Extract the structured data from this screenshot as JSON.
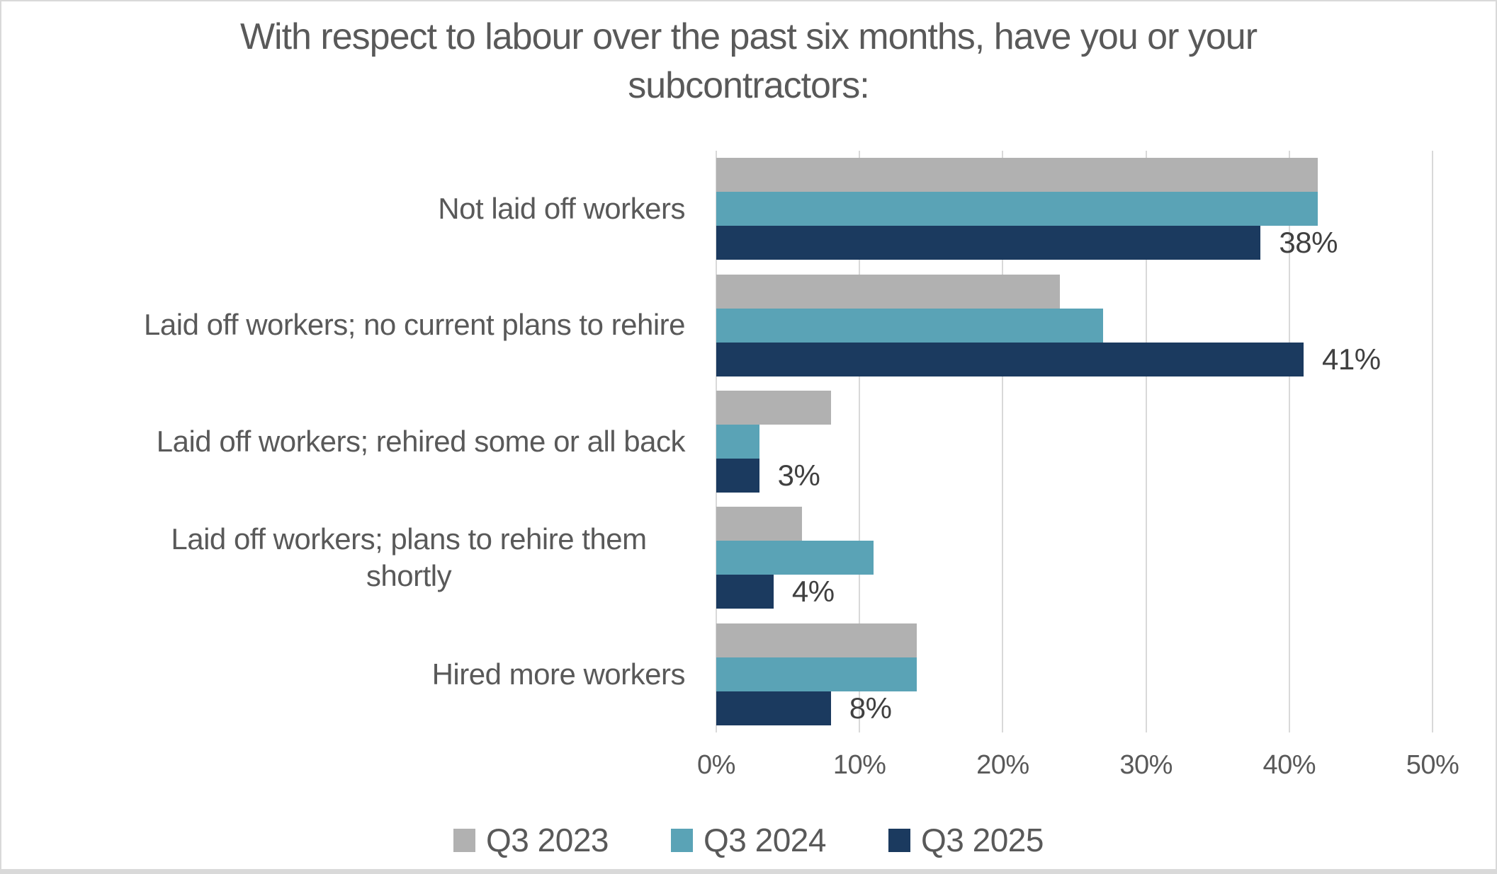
{
  "chart_data": {
    "type": "bar",
    "orientation": "horizontal",
    "title": "With respect to labour over the past six months, have you or your subcontractors:",
    "title_lines": [
      "With respect to labour over the past six months, have you or your",
      "subcontractors:"
    ],
    "categories": [
      "Not laid off workers",
      "Laid off workers; no current plans to rehire",
      "Laid off workers; rehired some or all back",
      "Laid off workers; plans to rehire them shortly",
      "Hired more workers"
    ],
    "series": [
      {
        "name": "Q3 2023",
        "color": "#b1b1b1",
        "values": [
          42,
          24,
          8,
          6,
          14
        ]
      },
      {
        "name": "Q3 2024",
        "color": "#5aa3b6",
        "values": [
          42,
          27,
          3,
          11,
          14
        ]
      },
      {
        "name": "Q3 2025",
        "color": "#1b3a5f",
        "values": [
          38,
          41,
          3,
          4,
          8
        ],
        "data_labels": [
          "38%",
          "41%",
          "3%",
          "4%",
          "8%"
        ]
      }
    ],
    "x_axis": {
      "min": 0,
      "max": 50,
      "tick_step": 10,
      "tick_labels": [
        "0%",
        "10%",
        "20%",
        "30%",
        "40%",
        "50%"
      ]
    },
    "grid": true,
    "legend_position": "bottom",
    "data_labels_on_series": "Q3 2025"
  },
  "colors": {
    "background": "#ffffff",
    "border": "#d9d9d9",
    "gridline": "#d9d9d9",
    "title_text": "#595959",
    "category_text": "#595959",
    "tick_text": "#595959",
    "data_label_text": "#404040",
    "legend_text": "#595959"
  }
}
